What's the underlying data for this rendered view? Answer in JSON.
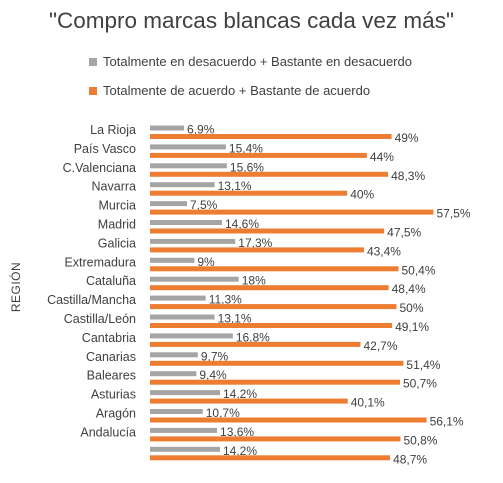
{
  "chart_data": {
    "type": "bar",
    "orientation": "horizontal",
    "title": "\"Compro marcas blancas cada vez más\"",
    "ylabel": "REGIÓN",
    "xlabel": "",
    "legend_position": "top-left",
    "xlim": [
      0,
      60
    ],
    "grid": false,
    "categories": [
      "La Rioja",
      "País Vasco",
      "C.Valenciana",
      "Navarra",
      "Murcia",
      "Madrid",
      "Galicia",
      "Extremadura",
      "Cataluña",
      "Castilla/Mancha",
      "Castilla/León",
      "Cantabria",
      "Canarias",
      "Baleares",
      "Asturias",
      "Aragón",
      "Andalucía",
      ""
    ],
    "series": [
      {
        "name": "Totalmente en desacuerdo + Bastante en desacuerdo",
        "color": "#A5A5A5",
        "values": [
          6.9,
          15.4,
          15.6,
          13.1,
          7.5,
          14.6,
          17.3,
          9,
          18,
          11.3,
          13.1,
          16.8,
          9.7,
          9.4,
          14.2,
          10.7,
          13.6,
          14.2
        ],
        "labels": [
          "6,9%",
          "15,4%",
          "15,6%",
          "13,1%",
          "7,5%",
          "14,6%",
          "17,3%",
          "9%",
          "18%",
          "11,3%",
          "13,1%",
          "16,8%",
          "9,7%",
          "9,4%",
          "14,2%",
          "10,7%",
          "13,6%",
          "14,2%"
        ]
      },
      {
        "name": "Totalmente de acuerdo + Bastante de acuerdo",
        "color": "#ED7D31",
        "values": [
          49,
          44,
          48.3,
          40,
          57.5,
          47.5,
          43.4,
          50.4,
          48.4,
          50,
          49.1,
          42.7,
          51.4,
          50.7,
          40.1,
          56.1,
          50.8,
          48.7
        ],
        "labels": [
          "49%",
          "44%",
          "48,3%",
          "40%",
          "57,5%",
          "47,5%",
          "43,4%",
          "50,4%",
          "48,4%",
          "50%",
          "49,1%",
          "42,7%",
          "51,4%",
          "50,7%",
          "40,1%",
          "56,1%",
          "50,8%",
          "48,7%"
        ]
      }
    ]
  }
}
